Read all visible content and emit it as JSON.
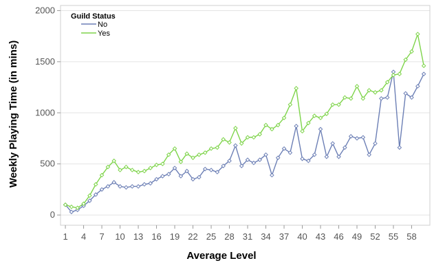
{
  "chart_data": {
    "type": "line",
    "xlabel": "Average Level",
    "ylabel": "Weekly Playing Time (in mins)",
    "xlim": [
      1,
      60
    ],
    "ylim": [
      -100,
      2050
    ],
    "yticks": [
      0,
      500,
      1000,
      1500,
      2000
    ],
    "xticks": [
      1,
      4,
      7,
      10,
      13,
      16,
      19,
      22,
      25,
      28,
      31,
      34,
      37,
      40,
      43,
      46,
      49,
      52,
      55,
      58
    ],
    "grid": "horizontal",
    "legend": {
      "title": "Guild Status",
      "position": "top-left"
    },
    "x": [
      1,
      2,
      3,
      4,
      5,
      6,
      7,
      8,
      9,
      10,
      11,
      12,
      13,
      14,
      15,
      16,
      17,
      18,
      19,
      20,
      21,
      22,
      23,
      24,
      25,
      26,
      27,
      28,
      29,
      30,
      31,
      32,
      33,
      34,
      35,
      36,
      37,
      38,
      39,
      40,
      41,
      42,
      43,
      44,
      45,
      46,
      47,
      48,
      49,
      50,
      51,
      52,
      53,
      54,
      55,
      56,
      57,
      58,
      59,
      60
    ],
    "series": [
      {
        "name": "No",
        "color": "#6c7fb5",
        "values": [
          100,
          30,
          50,
          90,
          140,
          200,
          250,
          280,
          320,
          280,
          270,
          280,
          280,
          300,
          310,
          350,
          380,
          400,
          460,
          380,
          430,
          350,
          370,
          450,
          440,
          420,
          480,
          530,
          680,
          480,
          540,
          510,
          540,
          590,
          390,
          560,
          650,
          610,
          870,
          550,
          530,
          590,
          840,
          570,
          700,
          570,
          660,
          770,
          750,
          760,
          590,
          700,
          1140,
          1150,
          1400,
          660,
          1190,
          1150,
          1260,
          1380
        ]
      },
      {
        "name": "Yes",
        "color": "#7ed44a",
        "values": [
          100,
          80,
          70,
          110,
          190,
          300,
          390,
          470,
          530,
          440,
          470,
          440,
          420,
          430,
          460,
          490,
          500,
          590,
          650,
          520,
          600,
          560,
          590,
          610,
          650,
          660,
          740,
          710,
          850,
          700,
          760,
          760,
          790,
          880,
          840,
          880,
          950,
          1080,
          1240,
          820,
          900,
          970,
          950,
          990,
          1080,
          1080,
          1150,
          1140,
          1260,
          1140,
          1220,
          1200,
          1220,
          1300,
          1370,
          1380,
          1520,
          1600,
          1770,
          1460
        ]
      }
    ]
  }
}
